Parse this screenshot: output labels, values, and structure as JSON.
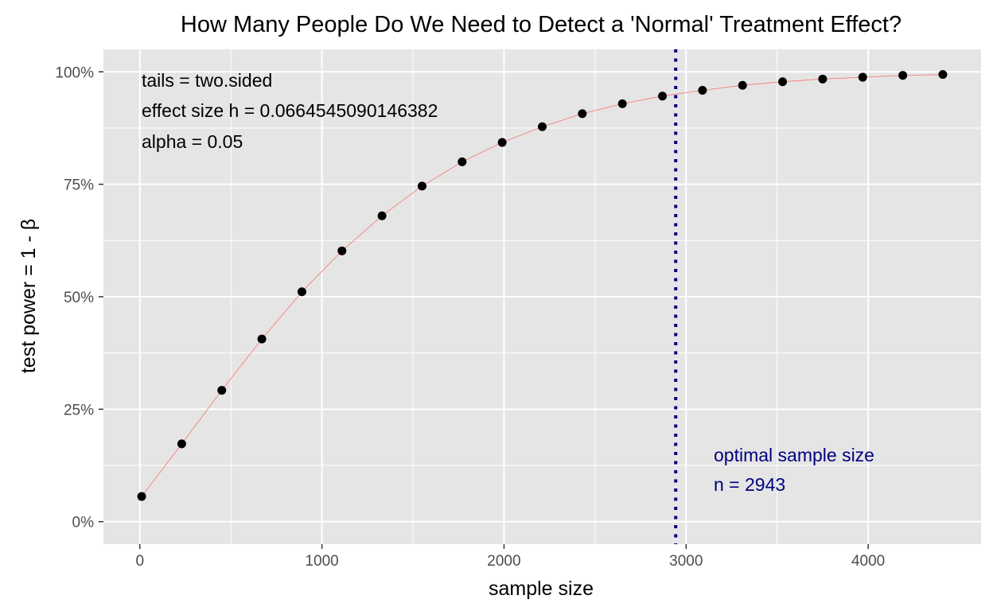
{
  "chart_data": {
    "type": "scatter",
    "title": "How Many People Do We Need to Detect a 'Normal' Treatment Effect?",
    "xlabel": "sample size",
    "ylabel": "test power = 1 - β",
    "xlim": [
      -200,
      4620
    ],
    "ylim": [
      -0.05,
      1.05
    ],
    "x_ticks": [
      0,
      1000,
      2000,
      3000,
      4000
    ],
    "x_tick_labels": [
      "0",
      "1000",
      "2000",
      "3000",
      "4000"
    ],
    "y_ticks": [
      0,
      0.25,
      0.5,
      0.75,
      1
    ],
    "y_tick_labels": [
      "0%",
      "25%",
      "50%",
      "75%",
      "100%"
    ],
    "grid": true,
    "series": [
      {
        "x": [
          10,
          230,
          450,
          670,
          890,
          1110,
          1330,
          1550,
          1770,
          1990,
          2210,
          2430,
          2650,
          2870,
          3090,
          3310,
          3530,
          3750,
          3970,
          4190,
          4410
        ],
        "values": [
          0.056,
          0.173,
          0.292,
          0.406,
          0.511,
          0.602,
          0.68,
          0.746,
          0.8,
          0.843,
          0.878,
          0.907,
          0.929,
          0.946,
          0.959,
          0.97,
          0.978,
          0.984,
          0.988,
          0.992,
          0.994
        ],
        "point_color": "#000000",
        "line_color": "#f8766d"
      }
    ],
    "vline": {
      "x": 2943,
      "color": "#00007f",
      "style": "dotted"
    },
    "annotations": {
      "params": [
        "tails = two.sided",
        "effect size h = 0.0664545090146382",
        "alpha = 0.05"
      ],
      "optimal": [
        "optimal sample size",
        "n = 2943"
      ]
    },
    "colors": {
      "panel": "#e5e5e5",
      "grid": "#ffffff",
      "annotation_blue": "#00007f"
    }
  }
}
